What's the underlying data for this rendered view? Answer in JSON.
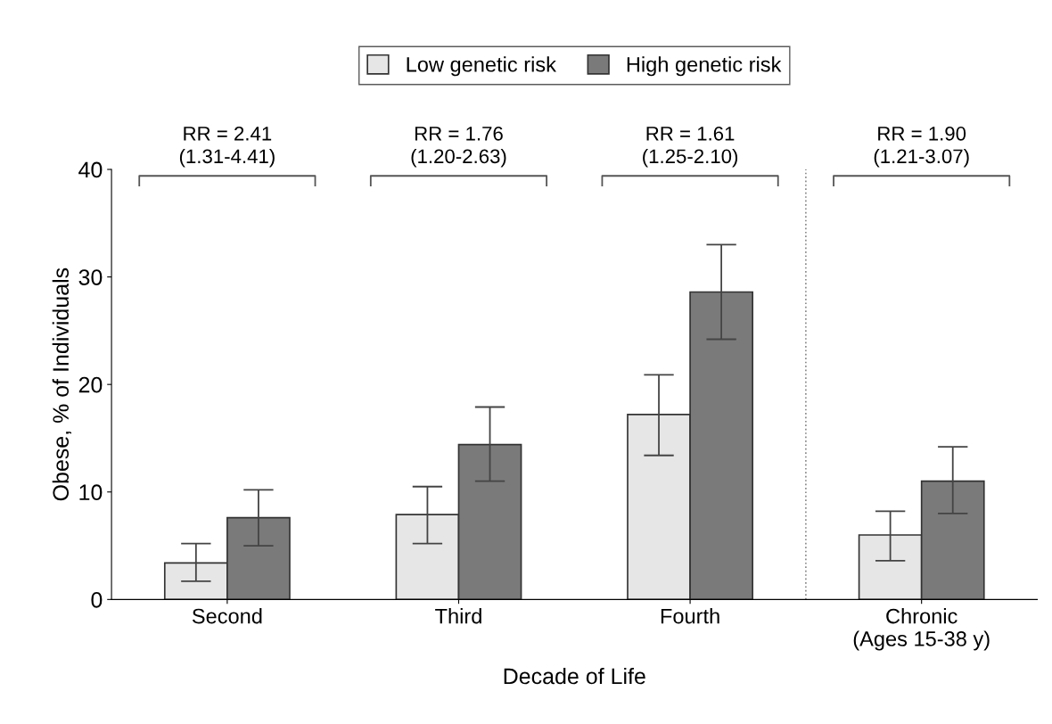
{
  "chart_data": {
    "type": "bar",
    "xlabel": "Decade of Life",
    "ylabel": "Obese, % of Individuals",
    "categories": [
      "Second",
      "Third",
      "Fourth",
      "Chronic\n(Ages 15-38 y)"
    ],
    "series": [
      {
        "name": "Low genetic risk",
        "color": "#e6e6e6",
        "values": [
          3.4,
          7.9,
          17.2,
          6.0
        ],
        "errors": [
          [
            1.7,
            5.2
          ],
          [
            5.2,
            10.5
          ],
          [
            13.4,
            20.9
          ],
          [
            3.6,
            8.2
          ]
        ]
      },
      {
        "name": "High genetic risk",
        "color": "#7a7a7a",
        "values": [
          7.6,
          14.4,
          28.6,
          11.0
        ],
        "errors": [
          [
            5.0,
            10.2
          ],
          [
            11.0,
            17.9
          ],
          [
            24.2,
            33.0
          ],
          [
            8.0,
            14.2
          ]
        ]
      }
    ],
    "ylim": [
      0,
      40
    ],
    "yticks": [
      0,
      10,
      20,
      30,
      40
    ],
    "grid": false,
    "legend": "top",
    "annotations": [
      "RR = 2.41\n(1.31-4.41)",
      "RR = 1.76\n(1.20-2.63)",
      "RR = 1.61\n(1.25-2.10)",
      "RR = 1.90\n(1.21-3.07)"
    ]
  }
}
